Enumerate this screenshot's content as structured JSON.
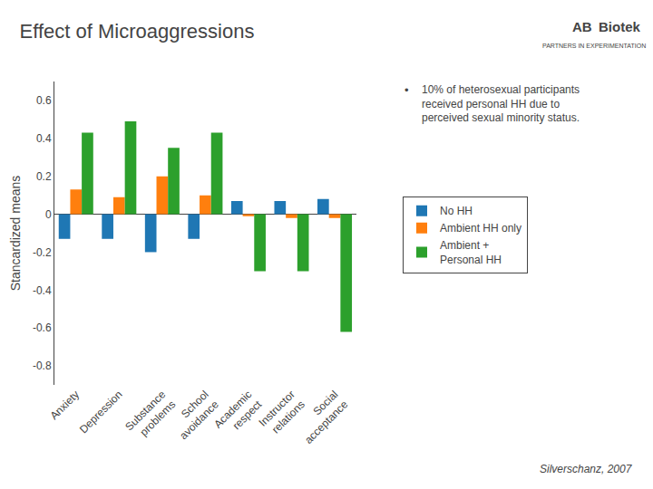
{
  "chart_data": {
    "type": "bar",
    "title": "Effect of Microaggressions",
    "categories": [
      "Anxiety",
      "Depression",
      "Substance\nproblems",
      "School\navoidance",
      "Academic\nrespect",
      "Instructor\nrelations",
      "Social\nacceptance"
    ],
    "series": [
      {
        "name": "No HH",
        "values": [
          -0.13,
          -0.13,
          -0.2,
          -0.13,
          0.07,
          0.07,
          0.08
        ]
      },
      {
        "name": "Ambient HH only",
        "values": [
          0.13,
          0.09,
          0.2,
          0.1,
          -0.01,
          -0.02,
          -0.02
        ]
      },
      {
        "name": "Ambient +\nPersonal HH",
        "values": [
          0.43,
          0.49,
          0.35,
          0.43,
          -0.3,
          -0.3,
          -0.62
        ]
      }
    ],
    "ylabel": "Stancardized means",
    "ylim": [
      -0.9,
      0.7
    ],
    "yticks": [
      -0.8,
      -0.6,
      -0.4,
      -0.2,
      0,
      0.2,
      0.4,
      0.6
    ],
    "grid": false,
    "legend": "right",
    "annotations": [
      "AB",
      "Biotek",
      "PARTNERS IN EXPERIMENTATION",
      "•",
      "10% of heterosexual participants\nreceived personal HH due to\nperceived sexual minority status.",
      "Silverschanz, 2007"
    ]
  }
}
